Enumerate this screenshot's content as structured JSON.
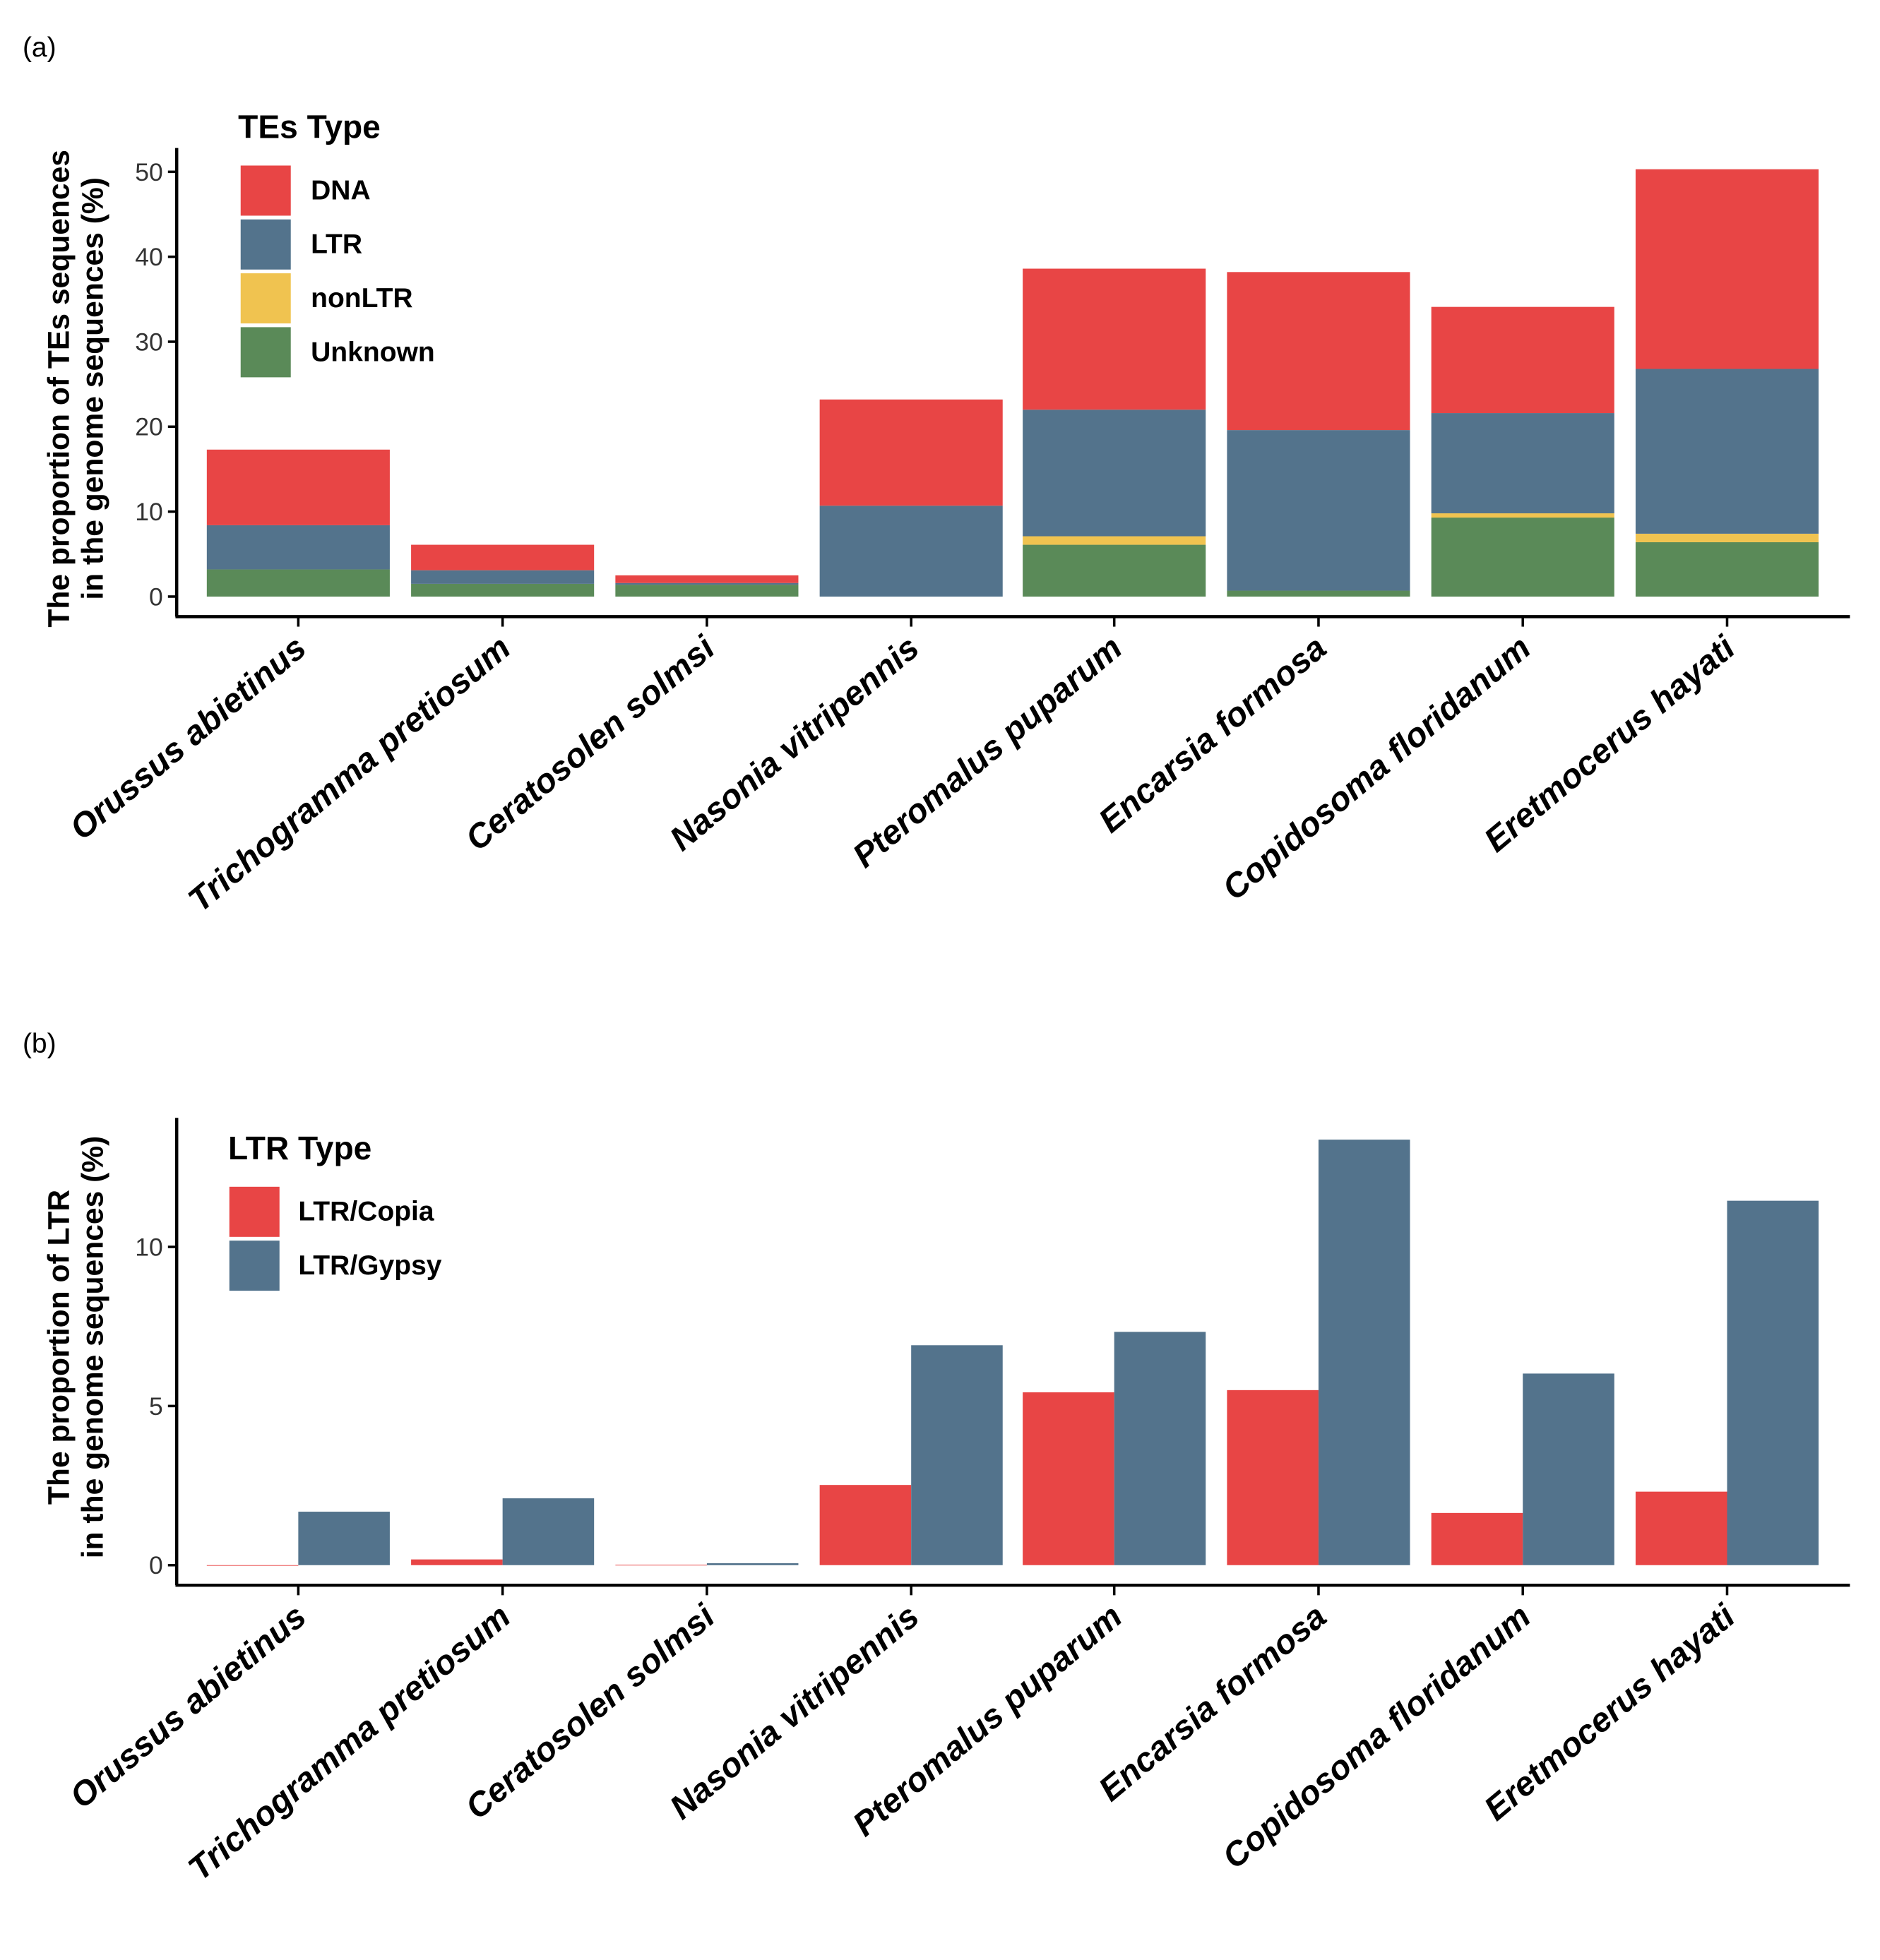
{
  "chart_data": [
    {
      "panel_label": "(a)",
      "type": "bar",
      "stacked": true,
      "ylabel": [
        "The proportion of TEs sequences",
        "in the genome sequences (%)"
      ],
      "ylim": [
        0,
        52
      ],
      "yticks": [
        0,
        10,
        20,
        30,
        40,
        50
      ],
      "legend_title": "TEs Type",
      "legend_position": "top-left",
      "categories": [
        "Orussus abietinus",
        "Trichogramma pretiosum",
        "Ceratosolen solmsi",
        "Nasonia vitripennis",
        "Pteromalus puparum",
        "Encarsia formosa",
        "Copidosoma floridanum",
        "Eretmocerus hayati"
      ],
      "series": [
        {
          "name": "Unknown",
          "color": "#5a8a58",
          "values": [
            3.2,
            1.5,
            1.4,
            0.0,
            6.1,
            0.7,
            9.3,
            6.4
          ]
        },
        {
          "name": "nonLTR",
          "color": "#f0c350",
          "values": [
            0.0,
            0.0,
            0.0,
            0.0,
            1.0,
            0.0,
            0.5,
            1.0
          ]
        },
        {
          "name": "LTR",
          "color": "#53738c",
          "values": [
            5.2,
            1.6,
            0.2,
            10.7,
            14.9,
            18.9,
            11.8,
            19.4
          ]
        },
        {
          "name": "DNA",
          "color": "#e84545",
          "values": [
            8.9,
            3.0,
            0.9,
            12.5,
            16.6,
            18.6,
            12.5,
            23.5
          ]
        }
      ],
      "legend_order": [
        "DNA",
        "LTR",
        "nonLTR",
        "Unknown"
      ]
    },
    {
      "panel_label": "(b)",
      "type": "bar",
      "stacked": false,
      "ylabel": [
        "The proportion of LTR",
        "in the genome sequences (%)"
      ],
      "ylim": [
        0,
        14
      ],
      "yticks": [
        0,
        5,
        10
      ],
      "legend_title": "LTR Type",
      "legend_position": "top-left",
      "categories": [
        "Orussus abietinus",
        "Trichogramma pretiosum",
        "Ceratosolen solmsi",
        "Nasonia vitripennis",
        "Pteromalus puparum",
        "Encarsia formosa",
        "Copidosoma floridanum",
        "Eretmocerus hayati"
      ],
      "series": [
        {
          "name": "LTR/Copia",
          "color": "#e84545",
          "values": [
            0.0,
            0.18,
            0.01,
            2.52,
            5.43,
            5.5,
            1.64,
            2.31
          ]
        },
        {
          "name": "LTR/Gypsy",
          "color": "#53738c",
          "values": [
            1.68,
            2.1,
            0.06,
            6.91,
            7.33,
            13.37,
            6.02,
            11.45
          ]
        }
      ],
      "legend_order": [
        "LTR/Copia",
        "LTR/Gypsy"
      ]
    }
  ]
}
